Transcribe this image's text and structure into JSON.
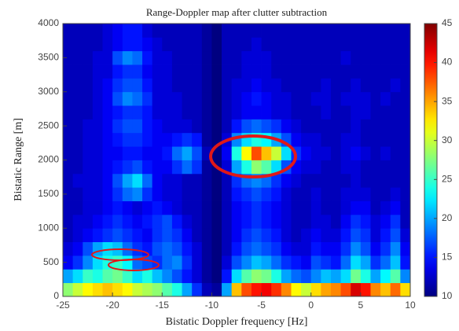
{
  "chart_data": {
    "type": "heatmap",
    "title": "Range-Doppler map after clutter subtraction",
    "x_label": "Bistatic Doppler frequency [Hz]",
    "y_label": "Bistatic Range [m]",
    "xlim": [
      -25,
      10
    ],
    "ylim": [
      0,
      4000
    ],
    "xticks": [
      -25,
      -20,
      -15,
      -10,
      -5,
      0,
      5,
      10
    ],
    "yticks": [
      0,
      500,
      1000,
      1500,
      2000,
      2500,
      3000,
      3500,
      4000
    ],
    "clim": [
      10,
      45
    ],
    "cticks": [
      10,
      15,
      20,
      25,
      30,
      35,
      40,
      45
    ],
    "colormap": "jet",
    "xbins": [
      -25,
      -24,
      -23,
      -22,
      -21,
      -20,
      -19,
      -18,
      -17,
      -16,
      -15,
      -14,
      -13,
      -12,
      -11,
      -10,
      -9,
      -8,
      -7,
      -6,
      -5,
      -4,
      -3,
      -2,
      -1,
      0,
      1,
      2,
      3,
      4,
      5,
      6,
      7,
      8,
      9,
      10
    ],
    "ybins": [
      0,
      200,
      400,
      600,
      800,
      1000,
      1200,
      1400,
      1600,
      1800,
      2000,
      2200,
      2400,
      2600,
      2800,
      3000,
      3200,
      3400,
      3600,
      3800,
      4000
    ],
    "z": [
      [
        28,
        30,
        32,
        33,
        34,
        33,
        32,
        30,
        29,
        28,
        26,
        24,
        20,
        16,
        12,
        11,
        20,
        34,
        38,
        40,
        41,
        39,
        36,
        32,
        30,
        33,
        35,
        36,
        38,
        42,
        40,
        36,
        34,
        37,
        33
      ],
      [
        20,
        22,
        25,
        24,
        26,
        27,
        25,
        22,
        24,
        21,
        19,
        17,
        15,
        13,
        11,
        10,
        15,
        22,
        26,
        28,
        27,
        24,
        20,
        18,
        17,
        19,
        21,
        20,
        22,
        27,
        24,
        20,
        23,
        26,
        19
      ],
      [
        14,
        16,
        19,
        22,
        24,
        25,
        23,
        18,
        17,
        16,
        18,
        19,
        16,
        13,
        11,
        10,
        13,
        17,
        19,
        21,
        20,
        18,
        16,
        15,
        14,
        17,
        16,
        15,
        18,
        22,
        20,
        16,
        18,
        21,
        15
      ],
      [
        13,
        14,
        17,
        20,
        22,
        21,
        18,
        16,
        15,
        17,
        18,
        17,
        15,
        13,
        11,
        10,
        12,
        15,
        17,
        18,
        17,
        16,
        14,
        13,
        13,
        15,
        14,
        14,
        16,
        19,
        17,
        14,
        16,
        19,
        14
      ],
      [
        12,
        13,
        14,
        15,
        16,
        17,
        16,
        15,
        14,
        16,
        17,
        16,
        14,
        12,
        11,
        10,
        12,
        14,
        16,
        17,
        16,
        15,
        13,
        12,
        13,
        14,
        13,
        13,
        15,
        17,
        16,
        13,
        15,
        17,
        13
      ],
      [
        12,
        13,
        13,
        14,
        15,
        16,
        15,
        14,
        15,
        16,
        17,
        15,
        13,
        12,
        11,
        10,
        12,
        14,
        15,
        16,
        15,
        14,
        13,
        12,
        12,
        13,
        13,
        12,
        14,
        16,
        15,
        13,
        14,
        16,
        12
      ],
      [
        12,
        12,
        13,
        13,
        14,
        15,
        14,
        13,
        14,
        15,
        14,
        13,
        12,
        12,
        11,
        10,
        12,
        14,
        15,
        16,
        15,
        14,
        13,
        12,
        12,
        13,
        12,
        12,
        13,
        14,
        14,
        12,
        13,
        14,
        12
      ],
      [
        12,
        12,
        13,
        13,
        14,
        16,
        18,
        19,
        16,
        14,
        13,
        13,
        12,
        12,
        11,
        10,
        12,
        15,
        16,
        17,
        16,
        15,
        13,
        12,
        12,
        13,
        12,
        12,
        13,
        13,
        13,
        12,
        12,
        13,
        12
      ],
      [
        12,
        13,
        13,
        13,
        14,
        17,
        20,
        22,
        18,
        14,
        13,
        13,
        12,
        12,
        11,
        10,
        12,
        16,
        18,
        19,
        18,
        16,
        14,
        13,
        12,
        12,
        12,
        12,
        12,
        13,
        12,
        12,
        12,
        12,
        12
      ],
      [
        12,
        12,
        13,
        13,
        14,
        15,
        16,
        17,
        15,
        14,
        14,
        16,
        18,
        16,
        11,
        10,
        13,
        20,
        24,
        28,
        26,
        22,
        17,
        14,
        13,
        13,
        12,
        12,
        13,
        13,
        12,
        12,
        12,
        12,
        12
      ],
      [
        12,
        12,
        13,
        13,
        14,
        14,
        15,
        15,
        14,
        14,
        15,
        18,
        20,
        17,
        12,
        10,
        14,
        24,
        32,
        38,
        34,
        30,
        22,
        16,
        14,
        13,
        13,
        12,
        13,
        14,
        13,
        12,
        13,
        12,
        12
      ],
      [
        12,
        12,
        13,
        13,
        14,
        15,
        16,
        16,
        15,
        14,
        14,
        15,
        16,
        15,
        11,
        10,
        13,
        19,
        22,
        24,
        23,
        20,
        17,
        14,
        13,
        13,
        12,
        12,
        13,
        13,
        12,
        12,
        12,
        12,
        12
      ],
      [
        12,
        12,
        13,
        13,
        14,
        16,
        17,
        17,
        15,
        14,
        13,
        13,
        13,
        12,
        11,
        10,
        12,
        15,
        17,
        18,
        17,
        16,
        14,
        13,
        12,
        12,
        12,
        12,
        12,
        13,
        12,
        12,
        12,
        12,
        12
      ],
      [
        12,
        12,
        12,
        13,
        14,
        15,
        16,
        16,
        15,
        13,
        13,
        13,
        12,
        12,
        11,
        10,
        12,
        13,
        14,
        14,
        14,
        13,
        13,
        12,
        12,
        12,
        13,
        12,
        12,
        13,
        13,
        12,
        12,
        12,
        12
      ],
      [
        12,
        12,
        12,
        13,
        14,
        17,
        19,
        18,
        16,
        13,
        13,
        13,
        12,
        12,
        11,
        10,
        12,
        13,
        14,
        15,
        14,
        13,
        13,
        12,
        12,
        13,
        13,
        12,
        13,
        13,
        13,
        12,
        13,
        12,
        12
      ],
      [
        12,
        12,
        12,
        13,
        14,
        16,
        17,
        17,
        15,
        13,
        13,
        12,
        12,
        12,
        11,
        10,
        12,
        13,
        13,
        14,
        13,
        13,
        12,
        12,
        12,
        12,
        13,
        12,
        12,
        13,
        12,
        12,
        12,
        13,
        12
      ],
      [
        12,
        12,
        12,
        13,
        13,
        15,
        16,
        16,
        14,
        13,
        13,
        12,
        12,
        12,
        11,
        10,
        12,
        12,
        13,
        13,
        13,
        12,
        12,
        12,
        12,
        12,
        12,
        12,
        12,
        12,
        12,
        12,
        12,
        12,
        12
      ],
      [
        12,
        12,
        12,
        13,
        13,
        17,
        19,
        18,
        15,
        13,
        13,
        12,
        12,
        12,
        11,
        10,
        12,
        12,
        13,
        13,
        13,
        12,
        12,
        12,
        12,
        12,
        12,
        12,
        13,
        12,
        12,
        12,
        12,
        12,
        12
      ],
      [
        12,
        12,
        12,
        12,
        13,
        14,
        15,
        15,
        14,
        13,
        12,
        12,
        12,
        12,
        11,
        10,
        12,
        12,
        12,
        13,
        12,
        12,
        12,
        12,
        12,
        12,
        12,
        12,
        12,
        12,
        12,
        12,
        12,
        12,
        12
      ],
      [
        12,
        12,
        12,
        12,
        13,
        14,
        15,
        15,
        13,
        12,
        12,
        12,
        12,
        12,
        11,
        10,
        12,
        12,
        12,
        12,
        12,
        12,
        12,
        12,
        12,
        12,
        12,
        12,
        12,
        12,
        12,
        12,
        12,
        12,
        12
      ]
    ]
  }
}
